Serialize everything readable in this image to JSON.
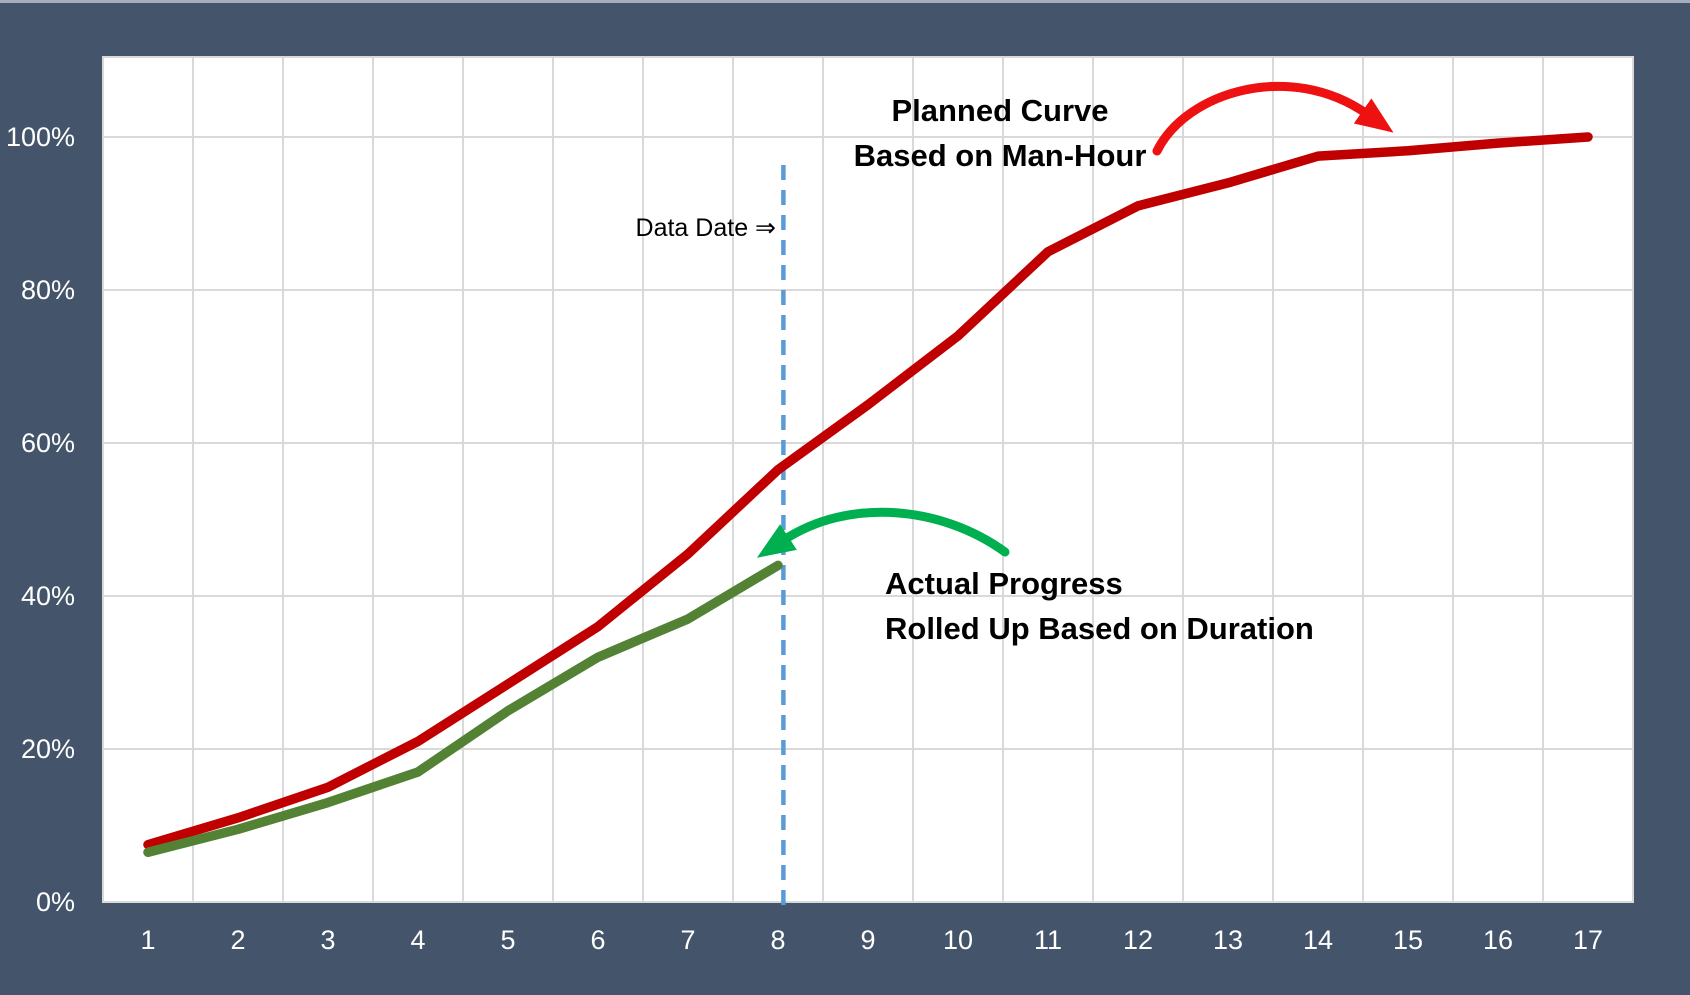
{
  "chart_data": {
    "type": "line",
    "title": "",
    "x": [
      1,
      2,
      3,
      4,
      5,
      6,
      7,
      8,
      9,
      10,
      11,
      12,
      13,
      14,
      15,
      16,
      17
    ],
    "series": [
      {
        "name": "Planned Curve Based on Man-Hour",
        "color": "#C00000",
        "values": [
          7.5,
          11,
          15,
          21,
          28.5,
          36,
          45.5,
          56.5,
          65,
          74,
          85,
          91,
          94,
          97.5,
          98.2,
          99.2,
          100
        ]
      },
      {
        "name": "Actual Progress Rolled Up Based on Duration",
        "color": "#548235",
        "values": [
          6.5,
          9.5,
          13,
          17,
          25,
          32,
          37,
          44
        ]
      }
    ],
    "xlabel": "",
    "ylabel": "",
    "y_ticks": [
      "0%",
      "20%",
      "40%",
      "60%",
      "80%",
      "100%"
    ],
    "y_tick_values": [
      0,
      20,
      40,
      60,
      80,
      100
    ],
    "ylim": [
      0,
      110.5
    ],
    "grid": true,
    "legend": "none",
    "data_date": {
      "label": "Data Date ⇒",
      "x_value": 8.06,
      "color": "#5B9BD5"
    }
  },
  "annotations": {
    "planned": {
      "line1": "Planned Curve",
      "line2": "Based on Man-Hour",
      "arrow_color": "#EE1111"
    },
    "actual": {
      "line1": "Actual Progress",
      "line2": "Rolled Up Based on Duration",
      "arrow_color": "#00B050"
    },
    "data_date_label": "Data Date ⇒"
  },
  "colors": {
    "background": "#44546A",
    "plot_bg": "#FFFFFF",
    "gridline": "#D9D9D9",
    "axis_text": "#FFFFFF",
    "annotation_text": "#000000",
    "top_strip": "#A7AFBF"
  }
}
